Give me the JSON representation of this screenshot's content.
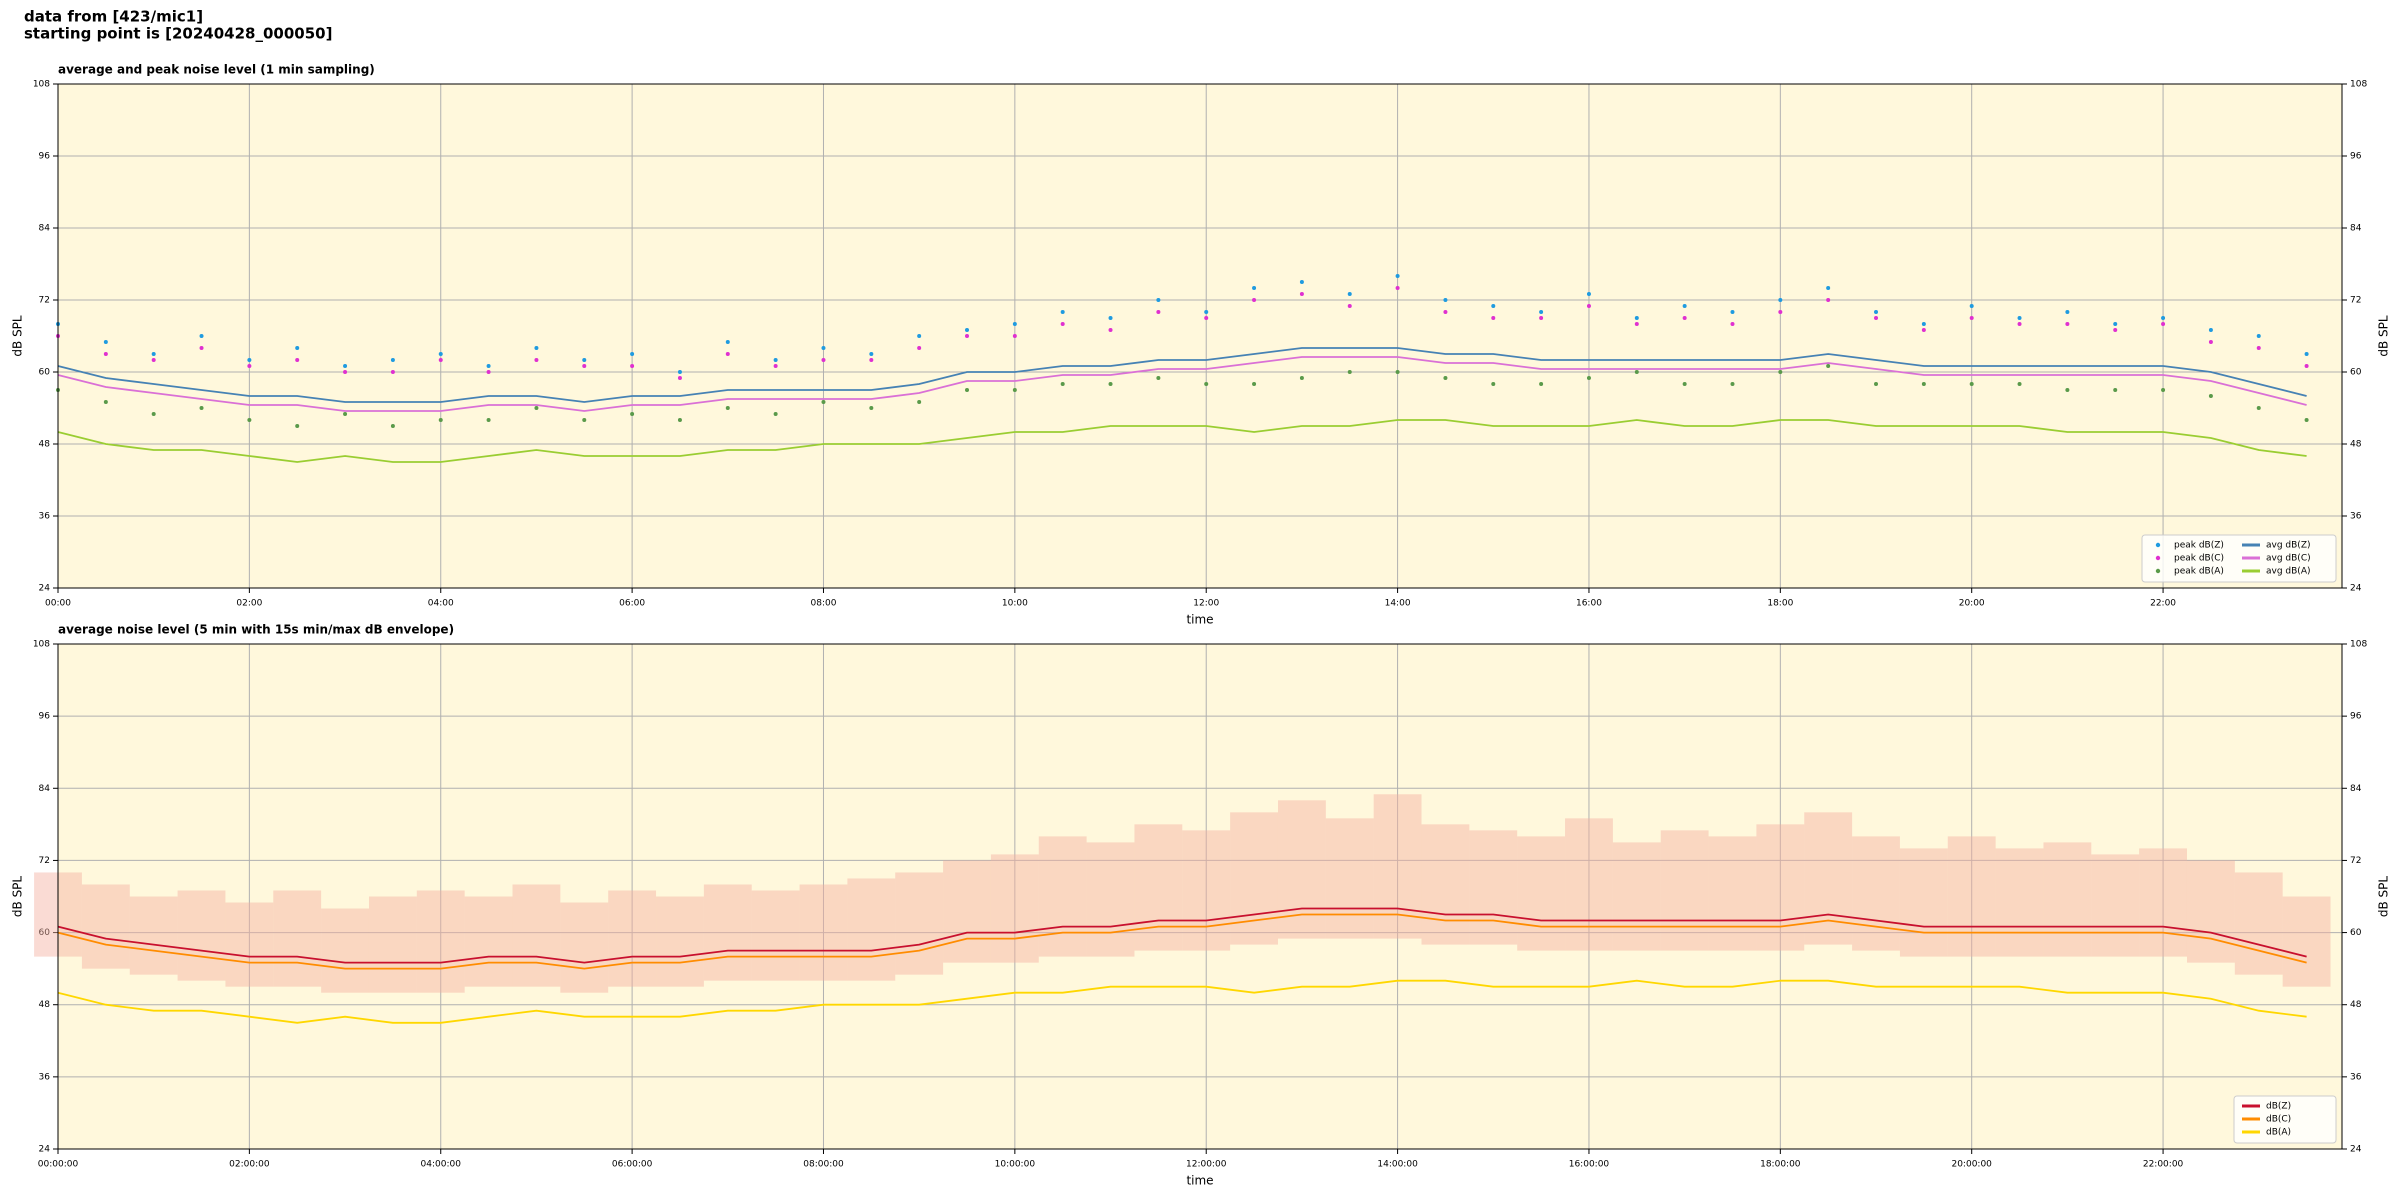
{
  "heading_lines": [
    "data from [423/mic1]",
    "starting point is [20240428_000050]"
  ],
  "chart_data": [
    {
      "type": "line",
      "title": "average and peak noise level (1 min sampling)",
      "xlabel": "time",
      "ylabel": "dB SPL",
      "y2label": "dB SPL",
      "xlim": [
        0,
        23.87
      ],
      "ylim": [
        24,
        108
      ],
      "y2lim": [
        24,
        108
      ],
      "grid": true,
      "legend": "lower right",
      "legend_columns": 2,
      "background": "#fff8dc",
      "xticks": [
        {
          "value": 0,
          "label": "00:00"
        },
        {
          "value": 2,
          "label": "02:00"
        },
        {
          "value": 4,
          "label": "04:00"
        },
        {
          "value": 6,
          "label": "06:00"
        },
        {
          "value": 8,
          "label": "08:00"
        },
        {
          "value": 10,
          "label": "10:00"
        },
        {
          "value": 12,
          "label": "12:00"
        },
        {
          "value": 14,
          "label": "14:00"
        },
        {
          "value": 16,
          "label": "16:00"
        },
        {
          "value": 18,
          "label": "18:00"
        },
        {
          "value": 20,
          "label": "20:00"
        },
        {
          "value": 22,
          "label": "22:00"
        }
      ],
      "yticks": [
        24,
        36,
        48,
        60,
        72,
        84,
        96,
        108
      ],
      "y2ticks": [
        24,
        36,
        48,
        60,
        72,
        84,
        96,
        108
      ],
      "x": [
        0,
        0.5,
        1,
        1.5,
        2,
        2.5,
        3,
        3.5,
        4,
        4.5,
        5,
        5.5,
        6,
        6.5,
        7,
        7.5,
        8,
        8.5,
        9,
        9.5,
        10,
        10.5,
        11,
        11.5,
        12,
        12.5,
        13,
        13.5,
        14,
        14.5,
        15,
        15.5,
        16,
        16.5,
        17,
        17.5,
        18,
        18.5,
        19,
        19.5,
        20,
        20.5,
        21,
        21.5,
        22,
        22.5,
        23,
        23.5
      ],
      "series": [
        {
          "name": "peak dB(Z)",
          "type": "scatter",
          "color": "#1f9be0",
          "values": [
            68,
            65,
            63,
            66,
            62,
            64,
            61,
            62,
            63,
            61,
            64,
            62,
            63,
            60,
            65,
            62,
            64,
            63,
            66,
            67,
            68,
            70,
            69,
            72,
            70,
            74,
            75,
            73,
            76,
            72,
            71,
            70,
            73,
            69,
            71,
            70,
            72,
            74,
            70,
            68,
            71,
            69,
            70,
            68,
            69,
            67,
            66,
            63
          ]
        },
        {
          "name": "peak dB(C)",
          "type": "scatter",
          "color": "#e030d0",
          "values": [
            66,
            63,
            62,
            64,
            61,
            62,
            60,
            60,
            62,
            60,
            62,
            61,
            61,
            59,
            63,
            61,
            62,
            62,
            64,
            66,
            66,
            68,
            67,
            70,
            69,
            72,
            73,
            71,
            74,
            70,
            69,
            69,
            71,
            68,
            69,
            68,
            70,
            72,
            69,
            67,
            69,
            68,
            68,
            67,
            68,
            65,
            64,
            61
          ]
        },
        {
          "name": "peak dB(A)",
          "type": "scatter",
          "color": "#5a9a4a",
          "values": [
            57,
            55,
            53,
            54,
            52,
            51,
            53,
            51,
            52,
            52,
            54,
            52,
            53,
            52,
            54,
            53,
            55,
            54,
            55,
            57,
            57,
            58,
            58,
            59,
            58,
            58,
            59,
            60,
            60,
            59,
            58,
            58,
            59,
            60,
            58,
            58,
            60,
            61,
            58,
            58,
            58,
            58,
            57,
            57,
            57,
            56,
            54,
            52
          ]
        },
        {
          "name": "avg dB(Z)",
          "type": "line",
          "color": "#4682b4",
          "values": [
            61,
            59,
            58,
            57,
            56,
            56,
            55,
            55,
            55,
            56,
            56,
            55,
            56,
            56,
            57,
            57,
            57,
            57,
            58,
            60,
            60,
            61,
            61,
            62,
            62,
            63,
            64,
            64,
            64,
            63,
            63,
            62,
            62,
            62,
            62,
            62,
            62,
            63,
            62,
            61,
            61,
            61,
            61,
            61,
            61,
            60,
            58,
            56
          ]
        },
        {
          "name": "avg dB(C)",
          "type": "line",
          "color": "#da70d6",
          "values": [
            59.5,
            57.5,
            56.5,
            55.5,
            54.5,
            54.5,
            53.5,
            53.5,
            53.5,
            54.5,
            54.5,
            53.5,
            54.5,
            54.5,
            55.5,
            55.5,
            55.5,
            55.5,
            56.5,
            58.5,
            58.5,
            59.5,
            59.5,
            60.5,
            60.5,
            61.5,
            62.5,
            62.5,
            62.5,
            61.5,
            61.5,
            60.5,
            60.5,
            60.5,
            60.5,
            60.5,
            60.5,
            61.5,
            60.5,
            59.5,
            59.5,
            59.5,
            59.5,
            59.5,
            59.5,
            58.5,
            56.5,
            54.5
          ]
        },
        {
          "name": "avg dB(A)",
          "type": "line",
          "color": "#9acd32",
          "values": [
            50,
            48,
            47,
            47,
            46,
            45,
            46,
            45,
            45,
            46,
            47,
            46,
            46,
            46,
            47,
            47,
            48,
            48,
            48,
            49,
            50,
            50,
            51,
            51,
            51,
            50,
            51,
            51,
            52,
            52,
            51,
            51,
            51,
            52,
            51,
            51,
            52,
            52,
            51,
            51,
            51,
            51,
            50,
            50,
            50,
            49,
            47,
            46
          ]
        }
      ]
    },
    {
      "type": "line",
      "title": "average noise level (5 min with 15s min/max dB envelope)",
      "xlabel": "time",
      "ylabel": "dB SPL",
      "y2label": "dB SPL",
      "xlim": [
        0,
        23.87
      ],
      "ylim": [
        24,
        108
      ],
      "y2lim": [
        24,
        108
      ],
      "grid": true,
      "legend": "lower right",
      "legend_columns": 1,
      "background": "#fff8dc",
      "xticks": [
        {
          "value": 0,
          "label": "00:00:00"
        },
        {
          "value": 2,
          "label": "02:00:00"
        },
        {
          "value": 4,
          "label": "04:00:00"
        },
        {
          "value": 6,
          "label": "06:00:00"
        },
        {
          "value": 8,
          "label": "08:00:00"
        },
        {
          "value": 10,
          "label": "10:00:00"
        },
        {
          "value": 12,
          "label": "12:00:00"
        },
        {
          "value": 14,
          "label": "14:00:00"
        },
        {
          "value": 16,
          "label": "16:00:00"
        },
        {
          "value": 18,
          "label": "18:00:00"
        },
        {
          "value": 20,
          "label": "20:00:00"
        },
        {
          "value": 22,
          "label": "22:00:00"
        }
      ],
      "yticks": [
        24,
        36,
        48,
        60,
        72,
        84,
        96,
        108
      ],
      "y2ticks": [
        24,
        36,
        48,
        60,
        72,
        84,
        96,
        108
      ],
      "x": [
        0,
        0.5,
        1,
        1.5,
        2,
        2.5,
        3,
        3.5,
        4,
        4.5,
        5,
        5.5,
        6,
        6.5,
        7,
        7.5,
        8,
        8.5,
        9,
        9.5,
        10,
        10.5,
        11,
        11.5,
        12,
        12.5,
        13,
        13.5,
        14,
        14.5,
        15,
        15.5,
        16,
        16.5,
        17,
        17.5,
        18,
        18.5,
        19,
        19.5,
        20,
        20.5,
        21,
        21.5,
        22,
        22.5,
        23,
        23.5
      ],
      "envelope": {
        "color": "#f4b0a0",
        "lower": [
          56,
          54,
          53,
          52,
          51,
          51,
          50,
          50,
          50,
          51,
          51,
          50,
          51,
          51,
          52,
          52,
          52,
          52,
          53,
          55,
          55,
          56,
          56,
          57,
          57,
          58,
          59,
          59,
          59,
          58,
          58,
          57,
          57,
          57,
          57,
          57,
          57,
          58,
          57,
          56,
          56,
          56,
          56,
          56,
          56,
          55,
          53,
          51
        ],
        "upper": [
          70,
          68,
          66,
          67,
          65,
          67,
          64,
          66,
          67,
          66,
          68,
          65,
          67,
          66,
          68,
          67,
          68,
          69,
          70,
          72,
          73,
          76,
          75,
          78,
          77,
          80,
          82,
          79,
          83,
          78,
          77,
          76,
          79,
          75,
          77,
          76,
          78,
          80,
          76,
          74,
          76,
          74,
          75,
          73,
          74,
          72,
          70,
          66
        ]
      },
      "series": [
        {
          "name": "dB(Z)",
          "type": "line",
          "color": "#c8102e",
          "values": [
            61,
            59,
            58,
            57,
            56,
            56,
            55,
            55,
            55,
            56,
            56,
            55,
            56,
            56,
            57,
            57,
            57,
            57,
            58,
            60,
            60,
            61,
            61,
            62,
            62,
            63,
            64,
            64,
            64,
            63,
            63,
            62,
            62,
            62,
            62,
            62,
            62,
            63,
            62,
            61,
            61,
            61,
            61,
            61,
            61,
            60,
            58,
            56
          ]
        },
        {
          "name": "dB(C)",
          "type": "line",
          "color": "#ff8c00",
          "values": [
            60,
            58,
            57,
            56,
            55,
            55,
            54,
            54,
            54,
            55,
            55,
            54,
            55,
            55,
            56,
            56,
            56,
            56,
            57,
            59,
            59,
            60,
            60,
            61,
            61,
            62,
            63,
            63,
            63,
            62,
            62,
            61,
            61,
            61,
            61,
            61,
            61,
            62,
            61,
            60,
            60,
            60,
            60,
            60,
            60,
            59,
            57,
            55
          ]
        },
        {
          "name": "dB(A)",
          "type": "line",
          "color": "#ffd700",
          "values": [
            50,
            48,
            47,
            47,
            46,
            45,
            46,
            45,
            45,
            46,
            47,
            46,
            46,
            46,
            47,
            47,
            48,
            48,
            48,
            49,
            50,
            50,
            51,
            51,
            51,
            50,
            51,
            51,
            52,
            52,
            51,
            51,
            51,
            52,
            51,
            51,
            52,
            52,
            51,
            51,
            51,
            51,
            50,
            50,
            50,
            49,
            47,
            46
          ]
        }
      ]
    }
  ]
}
